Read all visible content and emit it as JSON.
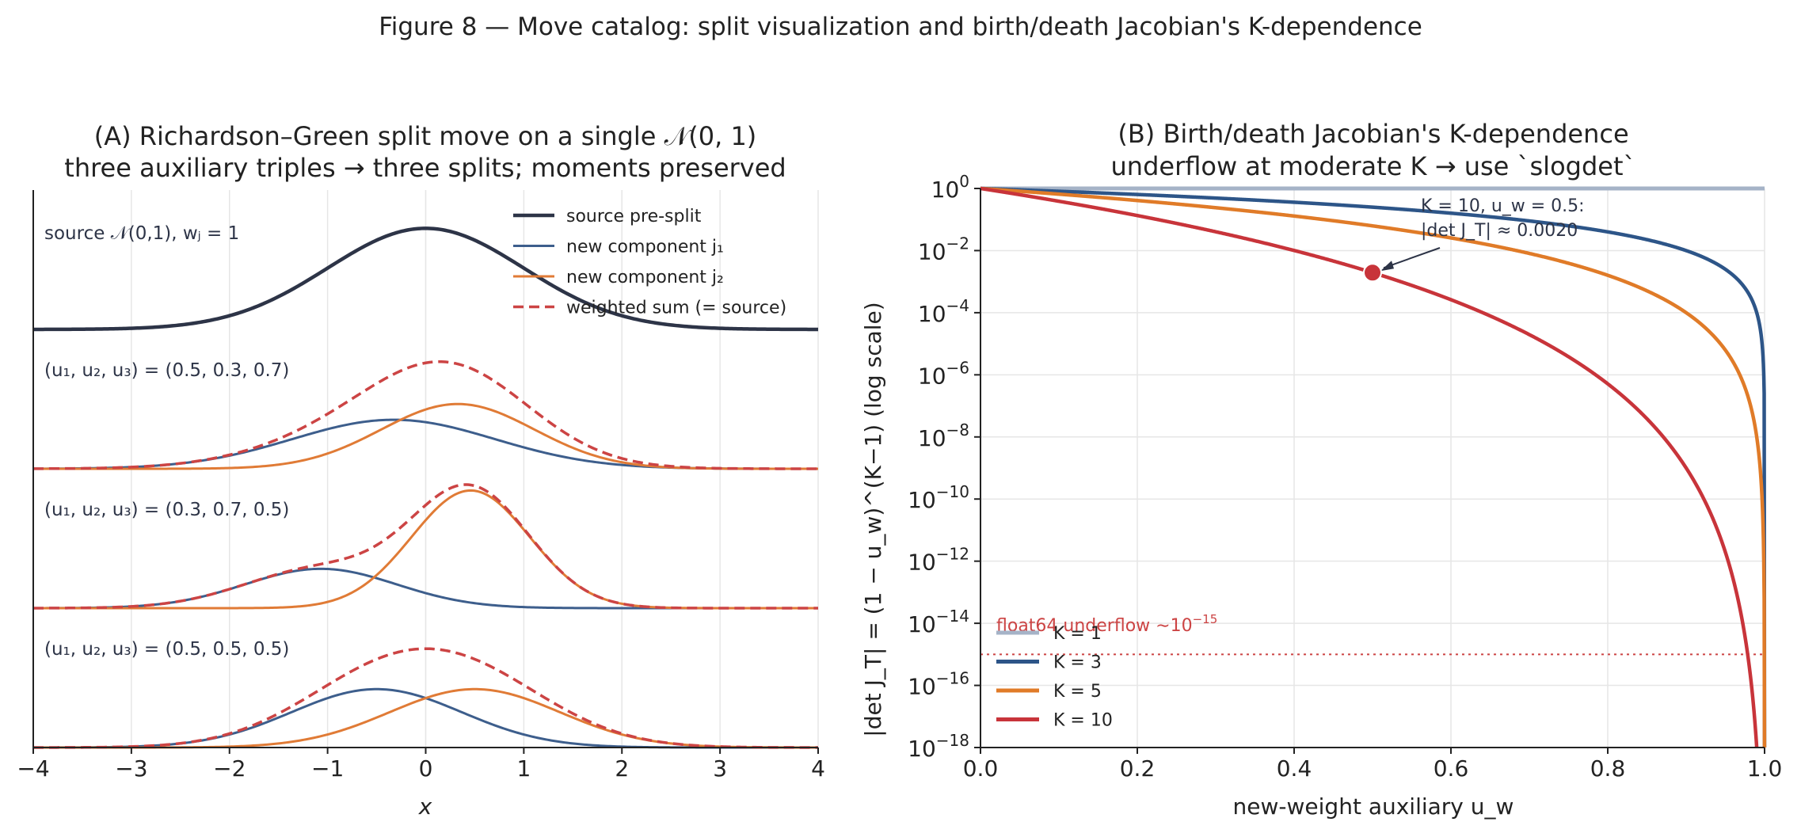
{
  "figure": {
    "title": "Figure 8 — Move catalog: split visualization and birth/death Jacobian's K-dependence"
  },
  "chart_data": [
    {
      "type": "line",
      "title": "(A) Richardson–Green split move on a single 𝒩(0, 1)",
      "subtitle": "three auxiliary triples → three splits; moments preserved",
      "xlabel": "x",
      "ylabel": "",
      "xlim": [
        -4,
        4
      ],
      "xticks": [
        "−4",
        "−3",
        "−2",
        "−1",
        "0",
        "1",
        "2",
        "3",
        "4"
      ],
      "grid": "vertical",
      "legend_placement": "top-right",
      "legend": [
        "source pre-split",
        "new component j₁",
        "new component j₂",
        "weighted sum (= source)"
      ],
      "colors": {
        "source": "#2d3447",
        "j1": "#3d5e8c",
        "j2": "#e07b36",
        "sum": "#cc4444"
      },
      "rows": [
        {
          "label": "source 𝒩(0,1), wⱼ = 1",
          "kind": "source",
          "mu": 0,
          "sigma": 1,
          "weight": 1
        },
        {
          "label": "(u₁, u₂, u₃) = (0.5, 0.3, 0.7)",
          "kind": "split",
          "j1": {
            "weight": 0.5,
            "mu": -0.3273,
            "sigma": 1.0315
          },
          "j2": {
            "weight": 0.5,
            "mu": 0.3273,
            "sigma": 0.7807
          }
        },
        {
          "label": "(u₁, u₂, u₃) = (0.3, 0.7, 0.5)",
          "kind": "split",
          "j1": {
            "weight": 0.3,
            "mu": -1.0693,
            "sigma": 0.7713
          },
          "j2": {
            "weight": 0.7,
            "mu": 0.4583,
            "sigma": 0.6015
          }
        },
        {
          "label": "(u₁, u₂, u₃) = (0.5, 0.5, 0.5)",
          "kind": "split",
          "j1": {
            "weight": 0.5,
            "mu": -0.5,
            "sigma": 0.866
          },
          "j2": {
            "weight": 0.5,
            "mu": 0.5,
            "sigma": 0.866
          }
        }
      ]
    },
    {
      "type": "line",
      "title": "(B) Birth/death Jacobian's K-dependence",
      "subtitle": "underflow at moderate K → use `slogdet`",
      "xlabel": "new-weight auxiliary u_w",
      "ylabel": "|det J_T| = (1 − u_w)^(K−1)   (log scale)",
      "xlim": [
        0,
        1
      ],
      "ylim": [
        1e-18,
        1
      ],
      "y_scale": "log",
      "xticks": [
        "0.0",
        "0.2",
        "0.4",
        "0.6",
        "0.8",
        "1.0"
      ],
      "yticks_exp": [
        "0",
        "−2",
        "−4",
        "−6",
        "−8",
        "−10",
        "−12",
        "−14",
        "−16",
        "−18"
      ],
      "ytick_base": "10",
      "grid": "both",
      "legend_placement": "lower-left",
      "series": [
        {
          "name": "K = 1",
          "K": 1,
          "color": "#a5b3c7"
        },
        {
          "name": "K = 3",
          "K": 3,
          "color": "#2d5588"
        },
        {
          "name": "K = 5",
          "K": 5,
          "color": "#e07b28"
        },
        {
          "name": "K = 10",
          "K": 10,
          "color": "#c8343a"
        }
      ],
      "underflow": {
        "y": 1e-15,
        "label": "float64 underflow ∼10",
        "label_exp": "−15",
        "color": "#cc4444"
      },
      "annotation": {
        "x": 0.5,
        "y": 0.00195,
        "line1": "K = 10, u_w = 0.5:",
        "line2": "|det J_T| ≈ 0.0020",
        "color": "#2d3447"
      }
    }
  ]
}
